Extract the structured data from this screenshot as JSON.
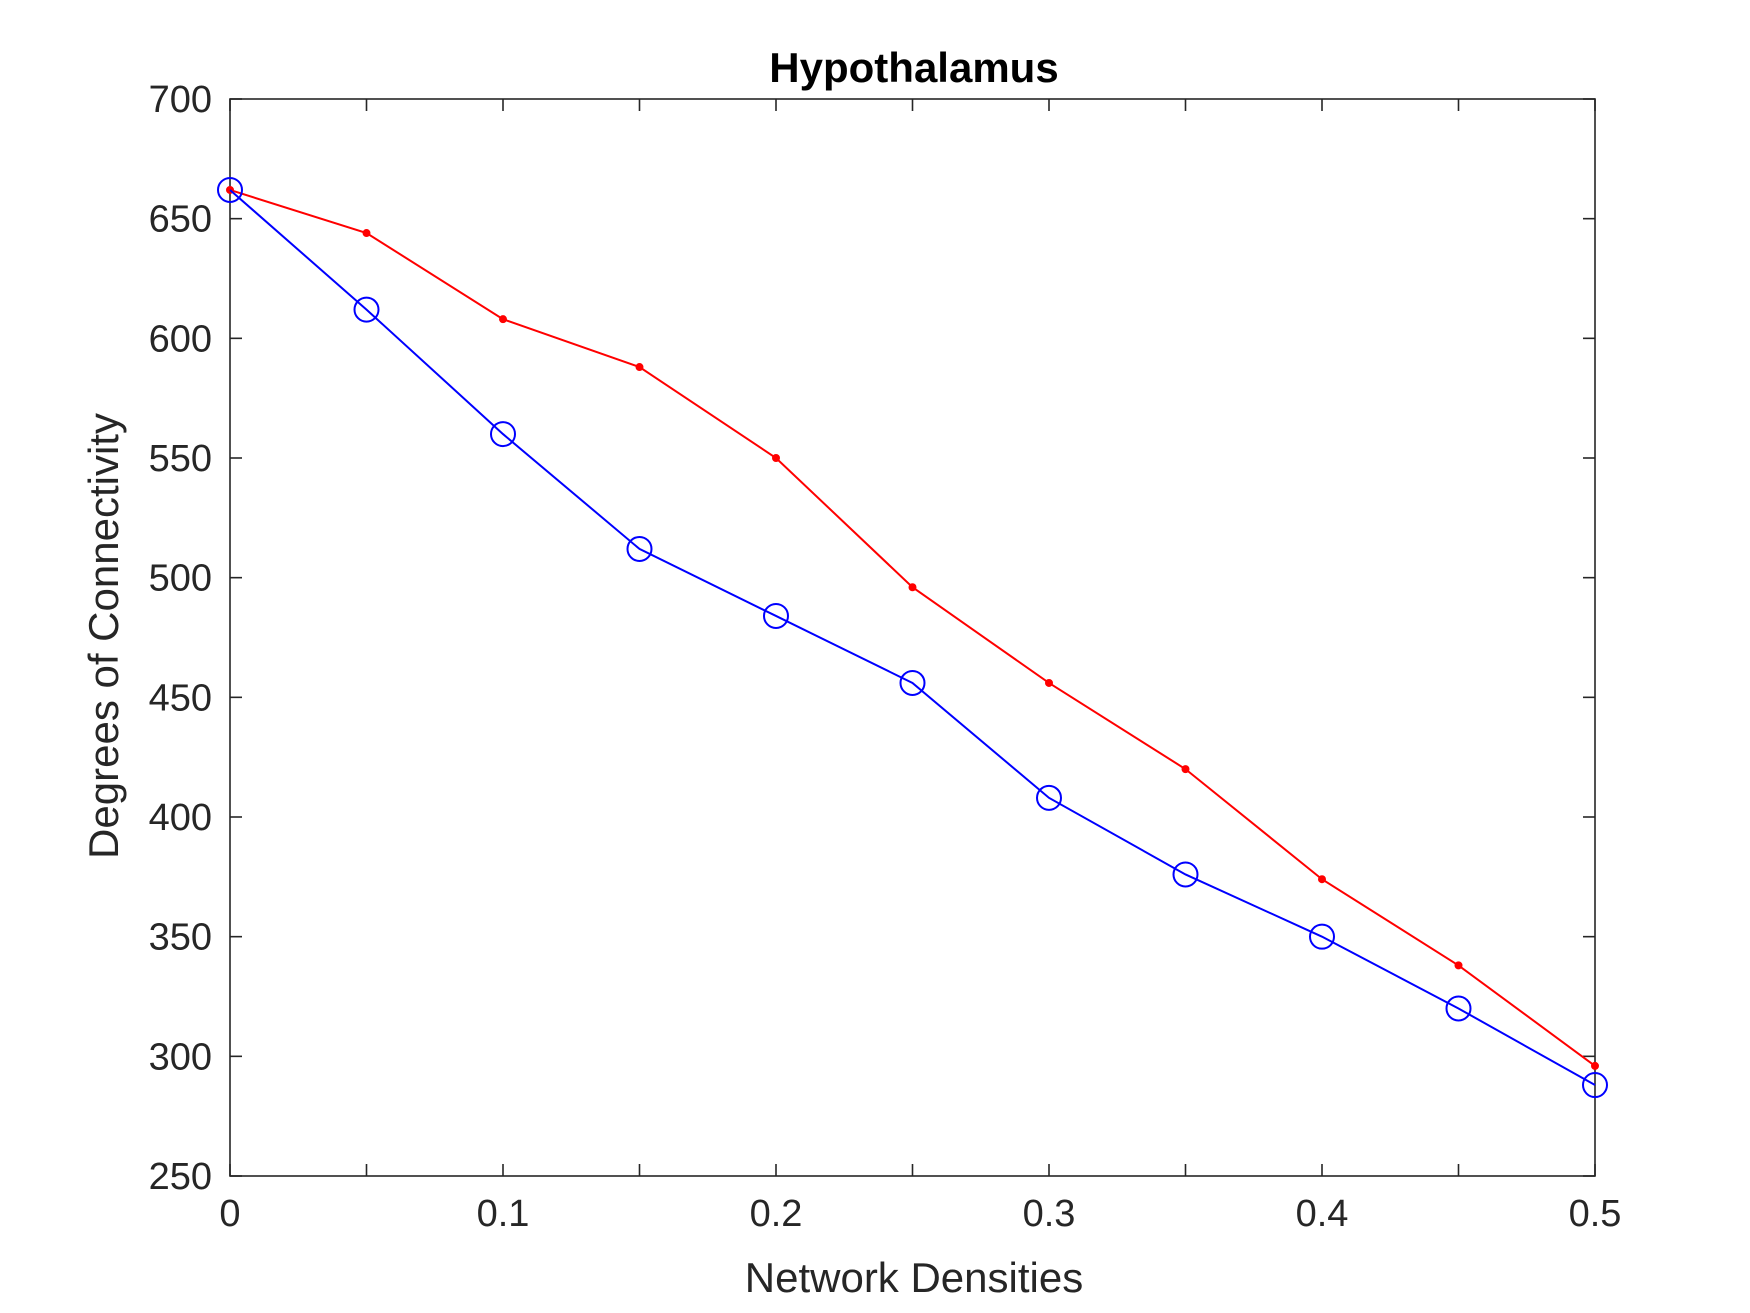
{
  "chart_data": {
    "type": "line",
    "title": "Hypothalamus",
    "xlabel": "Network Densities",
    "ylabel": "Degrees of Connectivity",
    "xlim": [
      0,
      0.5
    ],
    "ylim": [
      250,
      700
    ],
    "x_ticks": [
      "0",
      "0.1",
      "0.2",
      "0.3",
      "0.4",
      "0.5"
    ],
    "x_tick_values": [
      0,
      0.1,
      0.2,
      0.3,
      0.4,
      0.5
    ],
    "y_ticks": [
      "250",
      "300",
      "350",
      "400",
      "450",
      "500",
      "550",
      "600",
      "650",
      "700"
    ],
    "y_tick_values": [
      250,
      300,
      350,
      400,
      450,
      500,
      550,
      600,
      650,
      700
    ],
    "minor_x_tick_values": [
      0.05,
      0.15,
      0.25,
      0.35,
      0.45
    ],
    "grid": false,
    "legend": "none",
    "x": [
      0,
      0.05,
      0.1,
      0.15,
      0.2,
      0.25,
      0.3,
      0.35,
      0.4,
      0.45,
      0.5
    ],
    "series": [
      {
        "color": "#ff0000",
        "marker": "dot",
        "values": [
          662,
          644,
          608,
          588,
          550,
          496,
          456,
          420,
          374,
          338,
          296
        ]
      },
      {
        "color": "#0000ff",
        "marker": "circle",
        "values": [
          662,
          612,
          560,
          512,
          484,
          456,
          408,
          376,
          350,
          320,
          288
        ]
      }
    ]
  }
}
